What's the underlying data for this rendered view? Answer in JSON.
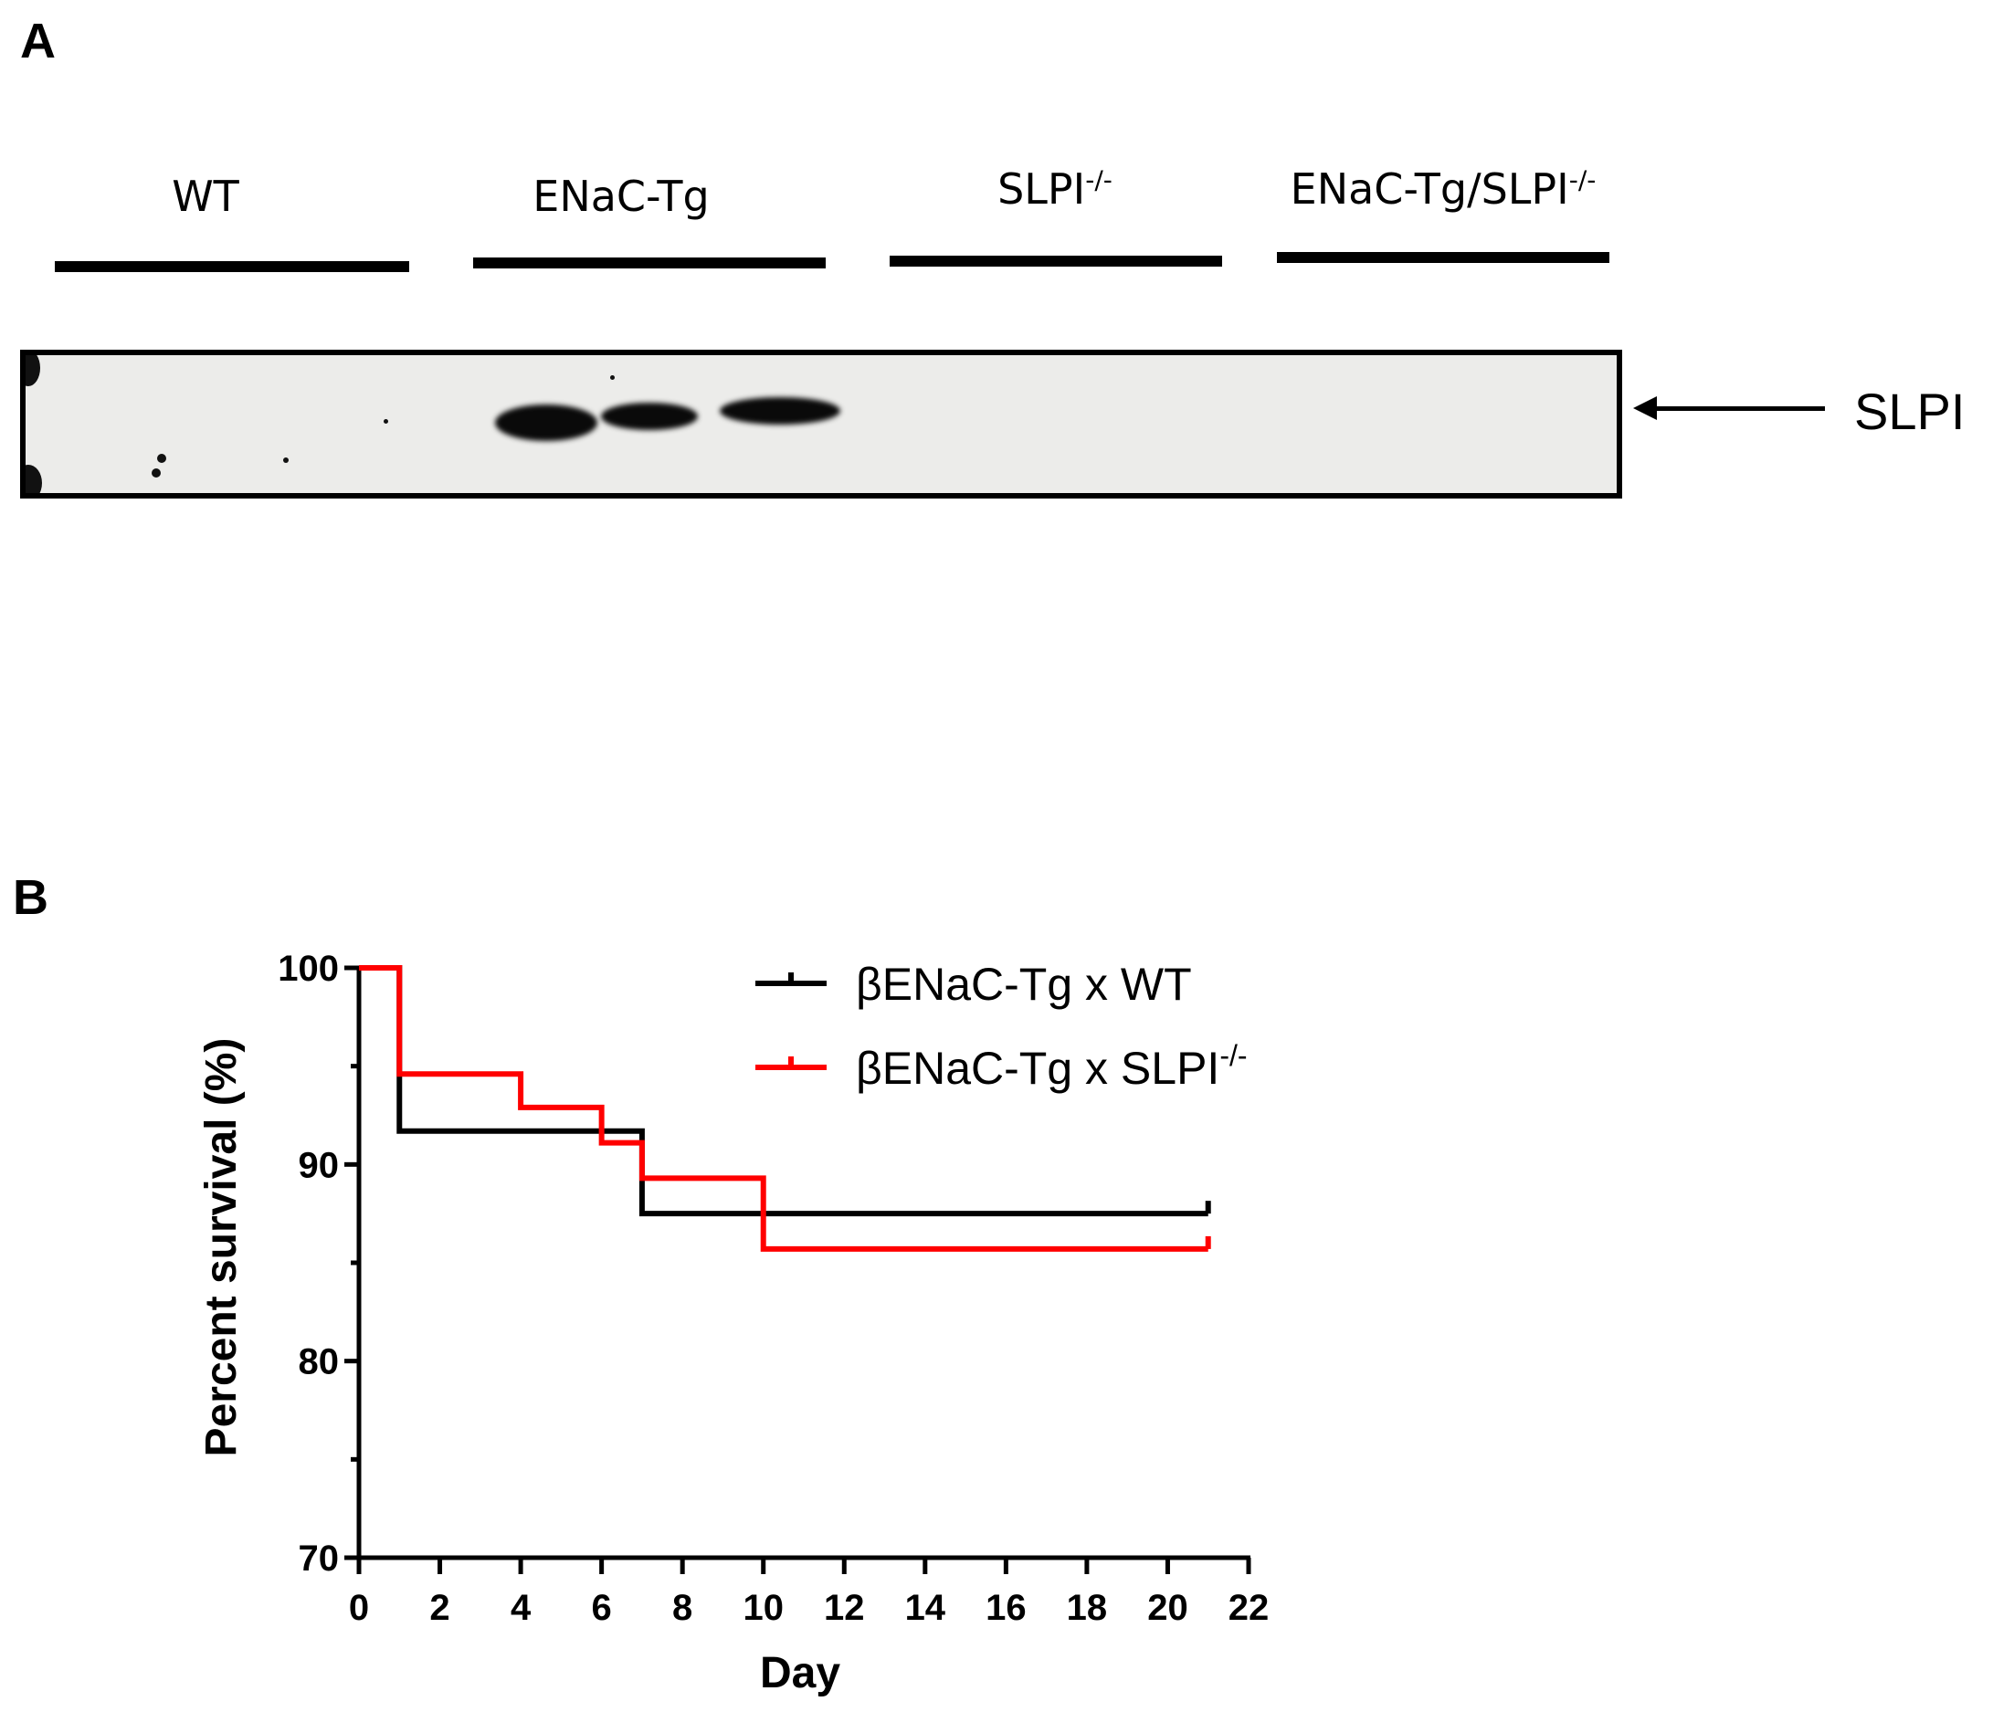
{
  "panel_a": {
    "letter": "A",
    "groups": [
      {
        "name": "WT",
        "sup": ""
      },
      {
        "name": "ENaC-Tg",
        "sup": ""
      },
      {
        "name": "SLPI",
        "sup": "-/-"
      },
      {
        "name": "ENaC-Tg/SLPI",
        "sup": "-/-"
      }
    ],
    "band_label": "SLPI"
  },
  "panel_b": {
    "letter": "B"
  },
  "colors": {
    "series_wt": "#000000",
    "series_slpi": "#ff0000",
    "axis": "#000000"
  },
  "chart_data": {
    "type": "line",
    "step": true,
    "xlabel": "Day",
    "ylabel": "Percent survival (%)",
    "xlim": [
      0,
      22
    ],
    "ylim": [
      70,
      100
    ],
    "xticks": [
      0,
      2,
      4,
      6,
      8,
      10,
      12,
      14,
      16,
      18,
      20,
      22
    ],
    "yticks": [
      70,
      80,
      90,
      100
    ],
    "grid": false,
    "legend_position": "top-right",
    "series": [
      {
        "name": "βENaC-Tg x WT",
        "name_base": "βENaC-Tg x WT",
        "name_sup": "",
        "color": "#000000",
        "x": [
          0,
          1,
          7,
          21
        ],
        "y": [
          100,
          91.7,
          87.5,
          87.5
        ]
      },
      {
        "name": "βENaC-Tg x SLPI-/-",
        "name_base": "βENaC-Tg x SLPI",
        "name_sup": "-/-",
        "color": "#ff0000",
        "x": [
          0,
          1,
          4,
          6,
          7,
          10,
          21
        ],
        "y": [
          100,
          94.6,
          92.9,
          91.1,
          89.3,
          85.7,
          85.7
        ]
      }
    ]
  }
}
